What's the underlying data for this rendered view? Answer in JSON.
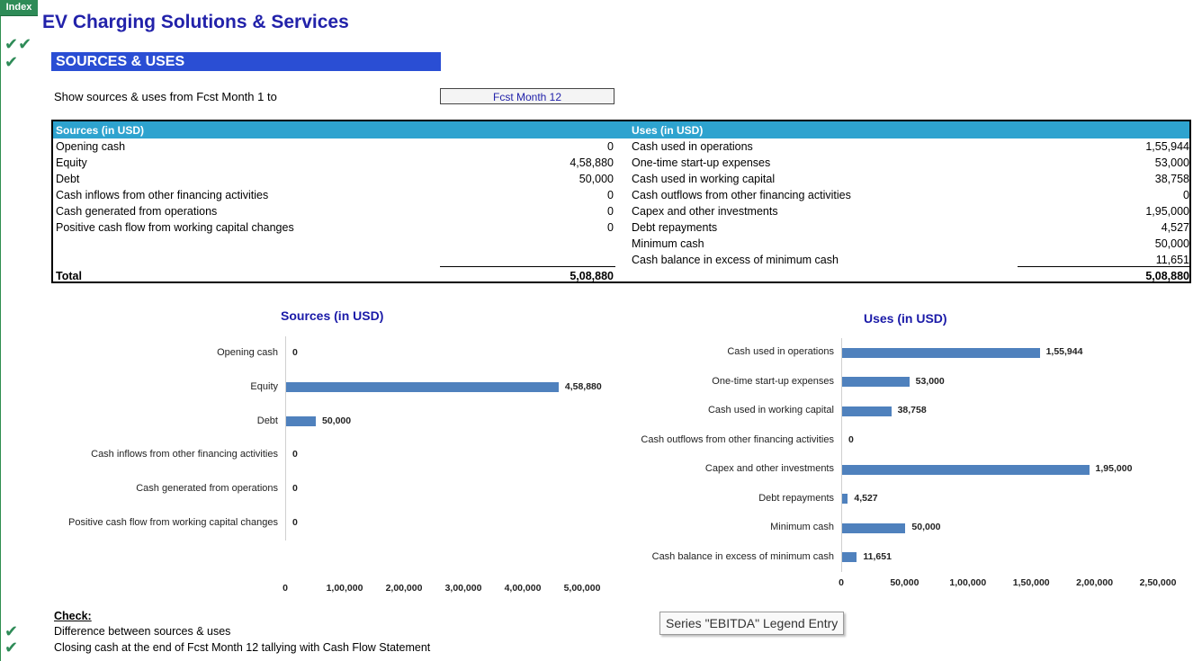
{
  "index_tab": "Index",
  "title": "EV Charging Solutions & Services",
  "section_title": "SOURCES & USES",
  "show_label": "Show sources & uses from Fcst Month 1 to",
  "selected_month": "Fcst Month 12",
  "table": {
    "sources_header": "Sources (in USD)",
    "uses_header": "Uses (in USD)",
    "sources": [
      {
        "label": "Opening cash",
        "value": "0"
      },
      {
        "label": "Equity",
        "value": "4,58,880"
      },
      {
        "label": "Debt",
        "value": "50,000"
      },
      {
        "label": "Cash inflows from other financing activities",
        "value": "0"
      },
      {
        "label": "Cash generated from operations",
        "value": "0"
      },
      {
        "label": "Positive cash flow from working capital changes",
        "value": "0"
      }
    ],
    "uses": [
      {
        "label": "Cash used in operations",
        "value": "1,55,944"
      },
      {
        "label": "One-time start-up expenses",
        "value": "53,000"
      },
      {
        "label": "Cash used in working capital",
        "value": "38,758"
      },
      {
        "label": "Cash outflows from other  financing activities",
        "value": "0"
      },
      {
        "label": "Capex and other investments",
        "value": "1,95,000"
      },
      {
        "label": "Debt repayments",
        "value": "4,527"
      },
      {
        "label": "Minimum cash",
        "value": "50,000"
      },
      {
        "label": "Cash balance in excess of minimum cash",
        "value": "11,651"
      }
    ],
    "total_label": "Total",
    "sources_total": "5,08,880",
    "uses_total": "5,08,880"
  },
  "chart_data": [
    {
      "type": "bar",
      "orientation": "horizontal",
      "title": "Sources (in USD)",
      "categories": [
        "Opening cash",
        "Equity",
        "Debt",
        "Cash inflows from other financing activities",
        "Cash generated from operations",
        "Positive cash flow from working capital changes"
      ],
      "values": [
        0,
        458880,
        50000,
        0,
        0,
        0
      ],
      "value_labels": [
        "0",
        "4,58,880",
        "50,000",
        "0",
        "0",
        "0"
      ],
      "xlim": [
        0,
        500000
      ],
      "ticks": [
        0,
        100000,
        200000,
        300000,
        400000,
        500000
      ],
      "tick_labels": [
        "0",
        "1,00,000",
        "2,00,000",
        "3,00,000",
        "4,00,000",
        "5,00,000"
      ],
      "bar_color": "#4f81bd",
      "grid": false
    },
    {
      "type": "bar",
      "orientation": "horizontal",
      "title": "Uses (in USD)",
      "categories": [
        "Cash used in operations",
        "One-time start-up expenses",
        "Cash used in working capital",
        "Cash outflows from other  financing activities",
        "Capex and other investments",
        "Debt repayments",
        "Minimum cash",
        "Cash balance in excess of minimum cash"
      ],
      "values": [
        155944,
        53000,
        38758,
        0,
        195000,
        4527,
        50000,
        11651
      ],
      "value_labels": [
        "1,55,944",
        "53,000",
        "38,758",
        "0",
        "1,95,000",
        "4,527",
        "50,000",
        "11,651"
      ],
      "xlim": [
        0,
        250000
      ],
      "ticks": [
        0,
        50000,
        100000,
        150000,
        200000,
        250000
      ],
      "tick_labels": [
        "0",
        "50,000",
        "1,00,000",
        "1,50,000",
        "2,00,000",
        "2,50,000"
      ],
      "bar_color": "#4f81bd",
      "grid": false
    }
  ],
  "check": {
    "heading": "Check:",
    "items": [
      "Difference between sources & uses",
      "Closing cash at the end of Fcst Month 12 tallying with Cash Flow Statement"
    ]
  },
  "tooltip": "Series \"EBITDA\" Legend Entry",
  "colors": {
    "title": "#2222aa",
    "section_bar": "#2a4ed4",
    "table_header": "#2ea3cf",
    "check_green": "#2e8b57"
  }
}
